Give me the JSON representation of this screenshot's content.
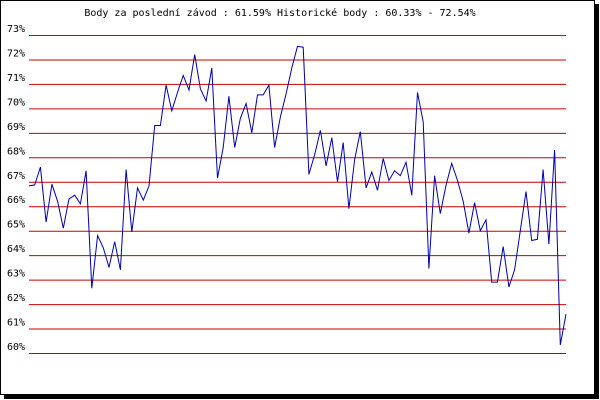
{
  "chart_data": {
    "type": "line",
    "title": "Body za poslední závod : 61.59%  Historické body : 60.33% - 72.54%",
    "ylim": [
      60,
      73
    ],
    "yticks": [
      {
        "value": 60,
        "label": "60%"
      },
      {
        "value": 61,
        "label": "61%"
      },
      {
        "value": 62,
        "label": "62%"
      },
      {
        "value": 63,
        "label": "63%"
      },
      {
        "value": 64,
        "label": "64%"
      },
      {
        "value": 65,
        "label": "65%"
      },
      {
        "value": 66,
        "label": "66%"
      },
      {
        "value": 67,
        "label": "67%"
      },
      {
        "value": 68,
        "label": "68%"
      },
      {
        "value": 69,
        "label": "69%"
      },
      {
        "value": 70,
        "label": "70%"
      },
      {
        "value": 71,
        "label": "71%"
      },
      {
        "value": 72,
        "label": "72%"
      },
      {
        "value": 73,
        "label": "73%"
      }
    ],
    "grid": true,
    "grid_color": "#cc0000",
    "color": "#0000aa",
    "values": [
      66.83,
      66.87,
      67.6,
      65.35,
      66.9,
      66.2,
      65.1,
      66.3,
      66.45,
      66.1,
      67.45,
      62.65,
      64.8,
      64.3,
      63.5,
      64.55,
      63.4,
      67.5,
      64.95,
      66.75,
      66.25,
      66.83,
      69.3,
      69.3,
      70.95,
      69.9,
      70.65,
      71.35,
      70.75,
      72.2,
      70.8,
      70.3,
      71.65,
      67.15,
      68.4,
      70.5,
      68.4,
      69.6,
      70.2,
      69.0,
      70.55,
      70.55,
      70.95,
      68.4,
      69.65,
      70.6,
      71.65,
      72.54,
      72.5,
      67.3,
      68.1,
      69.1,
      67.65,
      68.8,
      67.0,
      68.6,
      65.9,
      67.9,
      69.05,
      66.75,
      67.4,
      66.65,
      67.95,
      67.05,
      67.45,
      67.25,
      67.8,
      66.45,
      70.65,
      69.45,
      63.45,
      67.25,
      65.7,
      66.85,
      67.75,
      67.05,
      66.2,
      64.9,
      66.15,
      65.0,
      65.45,
      62.9,
      62.9,
      64.35,
      62.7,
      63.4,
      65.0,
      66.6,
      64.6,
      64.65,
      67.5,
      64.45,
      68.3,
      60.33,
      61.59
    ]
  }
}
